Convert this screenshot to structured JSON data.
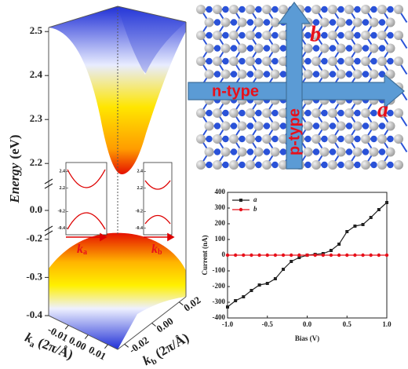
{
  "chart_data": [
    {
      "type": "band-surface",
      "ylabel": {
        "name": "Energy",
        "unit": "(eV)"
      },
      "ylim": [
        [
          2.17,
          2.52
        ],
        [
          -0.05,
          0.05
        ],
        [
          -0.4,
          -0.18
        ]
      ],
      "yticks": [
        2.5,
        2.4,
        2.3,
        2.2,
        {
          "value": 0,
          "label": "0.0"
        },
        -0.2,
        -0.3,
        -0.4
      ],
      "xlabel": {
        "symbol": "k",
        "subscript": "a",
        "unit": "(2π/Å)"
      },
      "xlim": [
        -0.02,
        0.015
      ],
      "xticks": [
        -0.01,
        {
          "value": 0,
          "label": "0.00"
        },
        0.01
      ],
      "zlabel": {
        "symbol": "k",
        "subscript": "b",
        "unit": "(2π/Å)"
      },
      "zlim": [
        -0.025,
        0.025
      ],
      "zticks": [
        0.02,
        {
          "value": 0,
          "label": "0.00"
        },
        -0.02
      ]
    },
    {
      "type": "band-inset",
      "insets": [
        {
          "xlabel": {
            "symbol": "k",
            "subscript": "a"
          },
          "ylim": [
            [
              2.15,
              2.45
            ],
            [
              -0.45,
              -0.15
            ]
          ],
          "yticks": [
            2.4,
            2.2,
            -0.2,
            -0.4
          ]
        },
        {
          "xlabel": {
            "symbol": "k",
            "subscript": "b"
          },
          "ylim": [
            [
              2.15,
              2.45
            ],
            [
              -0.45,
              -0.15
            ]
          ],
          "yticks": [
            2.4,
            2.2,
            -0.2,
            -0.4
          ]
        }
      ]
    },
    {
      "type": "line",
      "xlabel": "Bias (V)",
      "ylabel": "Current (nA)",
      "x": [
        -1,
        -0.9,
        -0.8,
        -0.7,
        -0.6,
        -0.5,
        -0.4,
        -0.3,
        -0.2,
        -0.1,
        0,
        0.1,
        0.2,
        0.3,
        0.4,
        0.5,
        0.6,
        0.7,
        0.8,
        0.9,
        1
      ],
      "series": [
        {
          "name": "a",
          "color": "#222222",
          "marker": "square",
          "values": [
            -330,
            -290,
            -265,
            -225,
            -190,
            -180,
            -150,
            -90,
            -40,
            -15,
            0,
            5,
            10,
            30,
            70,
            150,
            185,
            195,
            240,
            290,
            335
          ]
        },
        {
          "name": "b",
          "color": "#e8101a",
          "marker": "circle",
          "values": [
            0,
            0,
            0,
            0,
            0,
            0,
            0,
            0,
            0,
            0,
            0,
            0,
            0,
            0,
            0,
            0,
            0,
            0,
            0,
            0,
            0
          ]
        }
      ],
      "xlim": [
        -1,
        1
      ],
      "xticks": [
        {
          "value": -1,
          "label": "-1.0"
        },
        -0.5,
        {
          "value": 0,
          "label": "0.0"
        },
        0.5,
        {
          "value": 1,
          "label": "1.0"
        }
      ],
      "ylim": [
        -400,
        400
      ],
      "yticks": [
        -400,
        -300,
        -200,
        -100,
        0,
        100,
        200,
        300,
        400
      ],
      "legend": "upper left"
    }
  ],
  "structure": {
    "horizontal_label": "n-type",
    "vertical_label": "p-type",
    "a_label": "a",
    "b_label": "b"
  }
}
